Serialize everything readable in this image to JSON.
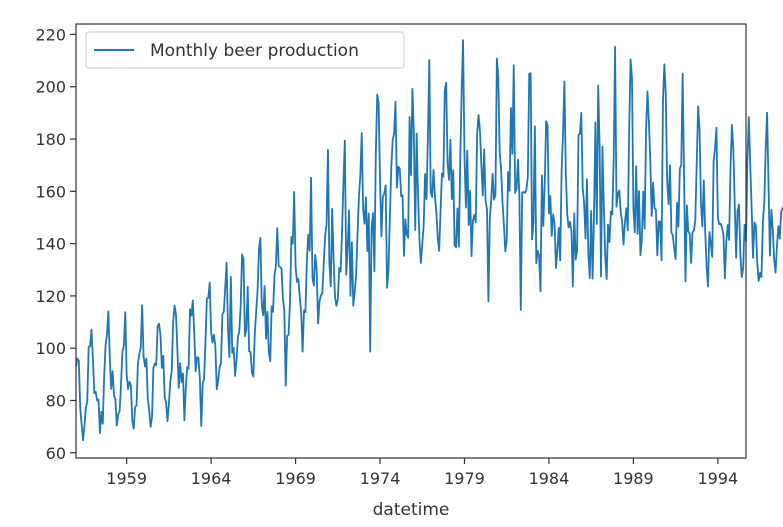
{
  "chart_data": {
    "type": "line",
    "title": "",
    "xlabel": "datetime",
    "ylabel": "",
    "xlim": [
      1956.0,
      1995.667
    ],
    "ylim": [
      58,
      224
    ],
    "xticks": [
      1959,
      1964,
      1969,
      1974,
      1979,
      1984,
      1989,
      1994
    ],
    "xtick_labels": [
      "1959",
      "1964",
      "1969",
      "1974",
      "1979",
      "1984",
      "1989",
      "1994"
    ],
    "yticks": [
      60,
      80,
      100,
      120,
      140,
      160,
      180,
      200,
      220
    ],
    "ytick_labels": [
      "60",
      "80",
      "100",
      "120",
      "140",
      "160",
      "180",
      "200",
      "220"
    ],
    "grid": false,
    "legend": {
      "position": "top-left",
      "entries": [
        "Monthly beer production"
      ]
    },
    "series": [
      {
        "name": "Monthly beer production",
        "color": "#1f77b4",
        "start": "1956-01",
        "frequency": "monthly",
        "values": [
          93.2,
          96.0,
          95.2,
          77.1,
          70.9,
          64.8,
          70.1,
          77.3,
          79.5,
          100.6,
          100.7,
          107.1,
          95.9,
          82.8,
          83.3,
          80.0,
          80.4,
          67.5,
          75.7,
          71.1,
          89.1,
          101.1,
          105.2,
          114.1,
          96.3,
          84.4,
          91.2,
          81.9,
          80.5,
          70.4,
          74.8,
          75.9,
          86.3,
          98.7,
          100.9,
          113.8,
          89.8,
          84.4,
          87.2,
          85.6,
          72.0,
          69.2,
          77.5,
          78.1,
          94.3,
          97.7,
          100.2,
          116.4,
          97.1,
          93.0,
          96.0,
          80.5,
          76.1,
          69.9,
          73.6,
          92.6,
          94.2,
          93.5,
          108.5,
          109.4,
          105.1,
          92.5,
          97.1,
          81.4,
          79.1,
          72.1,
          78.7,
          87.1,
          91.4,
          109.9,
          116.3,
          113.0,
          100.0,
          84.8,
          94.3,
          87.1,
          90.3,
          72.4,
          84.9,
          92.7,
          92.2,
          114.9,
          112.5,
          118.3,
          106.0,
          91.2,
          96.6,
          96.3,
          88.2,
          70.2,
          86.5,
          88.2,
          102.8,
          119.1,
          119.2,
          125.1,
          106.1,
          102.1,
          105.2,
          101.0,
          84.3,
          87.5,
          92.7,
          94.4,
          113.0,
          113.9,
          122.9,
          132.7,
          106.9,
          96.6,
          127.3,
          98.2,
          100.2,
          89.4,
          95.3,
          104.2,
          106.4,
          116.2,
          135.9,
          134.0,
          104.6,
          107.1,
          123.5,
          98.8,
          98.6,
          90.6,
          89.1,
          105.2,
          114.0,
          122.1,
          138.0,
          142.2,
          116.4,
          112.6,
          123.8,
          103.6,
          113.9,
          98.6,
          95.0,
          116.0,
          113.9,
          127.5,
          131.4,
          145.9,
          131.5,
          131.0,
          130.5,
          118.9,
          114.3,
          85.7,
          104.6,
          105.1,
          117.3,
          142.5,
          140.0,
          159.8,
          131.2,
          125.4,
          126.5,
          119.4,
          113.5,
          98.7,
          114.5,
          113.8,
          133.1,
          143.4,
          137.3,
          165.2,
          126.9,
          124.0,
          135.7,
          130.0,
          109.4,
          117.8,
          120.3,
          121.0,
          132.3,
          142.9,
          147.4,
          175.9,
          132.6,
          123.7,
          153.3,
          134.0,
          119.6,
          116.2,
          118.6,
          130.7,
          129.3,
          144.4,
          163.2,
          179.4,
          128.1,
          138.4,
          152.7,
          120.0,
          140.5,
          116.2,
          121.4,
          127.8,
          143.6,
          157.6,
          166.2,
          182.3,
          153.1,
          147.6,
          157.7,
          137.2,
          151.5,
          98.7,
          145.8,
          151.7,
          129.4,
          174.1,
          197.0,
          193.9,
          164.1,
          142.8,
          157.9,
          159.2,
          162.2,
          123.1,
          130.0,
          150.1,
          169.4,
          179.7,
          182.1,
          194.3,
          161.4,
          169.4,
          168.8,
          158.1,
          158.5,
          135.3,
          149.3,
          143.4,
          142.2,
          188.4,
          166.2,
          199.2,
          182.7,
          145.2,
          182.1,
          158.7,
          141.6,
          132.6,
          139.6,
          147.0,
          166.6,
          157.0,
          180.4,
          210.2,
          159.8,
          157.8,
          168.2,
          158.4,
          152.0,
          142.2,
          137.2,
          152.6,
          166.8,
          165.6,
          198.6,
          201.5,
          170.7,
          164.4,
          179.7,
          157.0,
          168.0,
          139.3,
          138.6,
          153.4,
          138.9,
          172.1,
          198.4,
          217.8,
          173.7,
          153.8,
          175.6,
          147.1,
          160.3,
          135.2,
          148.8,
          151.0,
          148.2,
          182.2,
          189.2,
          183.1,
          170.0,
          158.4,
          176.1,
          156.2,
          153.2,
          117.9,
          149.8,
          156.6,
          166.7,
          156.8,
          158.6,
          210.8,
          203.6,
          175.2,
          168.7,
          155.9,
          147.3,
          137.0,
          141.1,
          167.4,
          160.2,
          191.9,
          174.4,
          208.2,
          159.4,
          161.1,
          172.1,
          158.4,
          114.6,
          159.6,
          159.7,
          159.4,
          160.7,
          165.5,
          205.0,
          205.2,
          141.6,
          148.1,
          184.9,
          132.5,
          137.3,
          135.5,
          121.7,
          166.1,
          146.8,
          162.8,
          186.8,
          185.5,
          151.5,
          158.1,
          143.0,
          151.2,
          147.6,
          130.7,
          137.5,
          146.1,
          133.6,
          167.9,
          181.9,
          202.0,
          166.5,
          151.3,
          146.2,
          148.3,
          144.7,
          123.6,
          151.6,
          133.9,
          137.4,
          181.6,
          182.0,
          190.0,
          161.2,
          155.5,
          141.9,
          164.6,
          136.2,
          126.8,
          152.5,
          126.6,
          150.1,
          186.3,
          147.5,
          200.4,
          177.2,
          127.4,
          177.1,
          154.4,
          135.2,
          126.4,
          147.3,
          140.6,
          152.3,
          151.2,
          172.2,
          215.3,
          154.1,
          159.3,
          160.4,
          151.9,
          148.4,
          139.6,
          148.2,
          153.5,
          145.1,
          183.7,
          210.5,
          203.3,
          153.3,
          144.3,
          169.6,
          143.7,
          160.1,
          135.6,
          141.8,
          159.9,
          145.7,
          183.5,
          198.2,
          186.8,
          172.0,
          150.6,
          163.3,
          153.7,
          152.9,
          135.5,
          148.5,
          148.4,
          133.6,
          194.1,
          208.6,
          197.3,
          164.0,
          155.1,
          170.0,
          144.2,
          143.2,
          138.0,
          134.1,
          155.6,
          146.5,
          168.7,
          170.0,
          205.0,
          166.1,
          125.5,
          154.6,
          144.7,
          143.8,
          132.6,
          144.4,
          145.1,
          149.0,
          171.0,
          192.5,
          183.8,
          155.6,
          146.5,
          164.2,
          145.0,
          131.2,
          123.6,
          144.5,
          140.3,
          134.9,
          171.5,
          176.5,
          184.3,
          150.1,
          147.4,
          147.6,
          146.2,
          143.2,
          126.7,
          140.7,
          147.1,
          141.4,
          169.2,
          185.4,
          176.2,
          155.2,
          134.6,
          152.6,
          154.9,
          135.7,
          127.2,
          130.7,
          147.2,
          141.0,
          171.6,
          188.4,
          170.5,
          153.7,
          134.6,
          148.1,
          146.8,
          132.5,
          125.7,
          128.8,
          127.2,
          148.2,
          155.6,
          176.5,
          190.1,
          162.3,
          135.4,
          153.0,
          145.7,
          134.0,
          128.9,
          139.1,
          146.7,
          141.9,
          152.2,
          153.4,
          154.8,
          138.3,
          126.5,
          153.3,
          146.2,
          128.9,
          134.1,
          138.3,
          139.2,
          135.5,
          119.5,
          144.1,
          154.0
        ]
      }
    ]
  }
}
